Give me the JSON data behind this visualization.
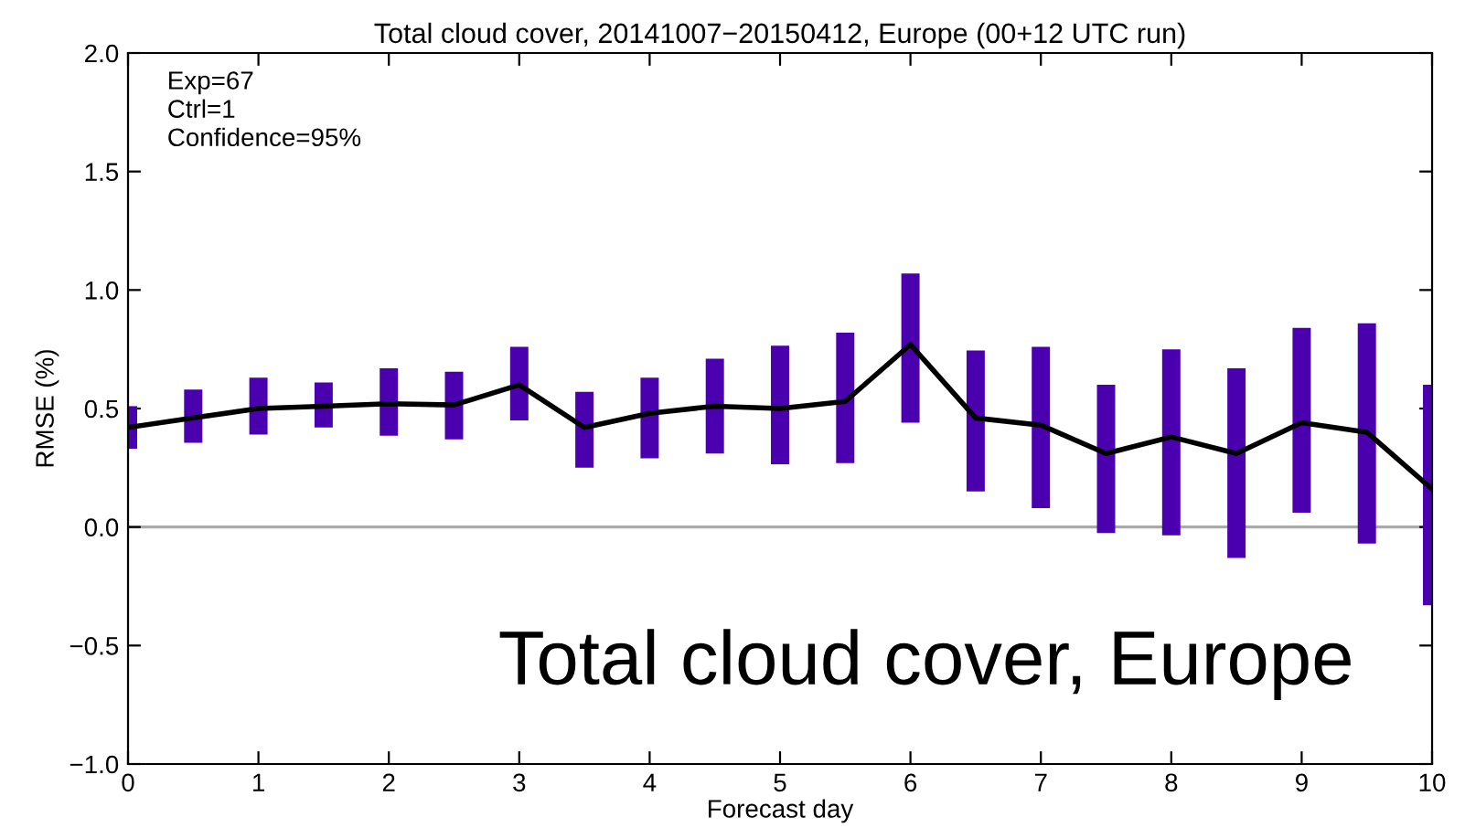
{
  "chart_data": {
    "type": "bar",
    "title": "Total cloud cover, 20141007−20150412, Europe (00+12 UTC run)",
    "xlabel": "Forecast day",
    "ylabel": "RMSE (%)",
    "x": [
      0,
      0.5,
      1,
      1.5,
      2,
      2.5,
      3,
      3.5,
      4,
      4.5,
      5,
      5.5,
      6,
      6.5,
      7,
      7.5,
      8,
      8.5,
      9,
      9.5,
      10
    ],
    "series": [
      {
        "color": "#4b00b0",
        "base": [
          0.33,
          0.355,
          0.39,
          0.42,
          0.385,
          0.37,
          0.45,
          0.25,
          0.29,
          0.31,
          0.265,
          0.27,
          0.44,
          0.15,
          0.08,
          -0.025,
          -0.035,
          -0.13,
          0.06,
          -0.07,
          -0.33
        ],
        "values": [
          0.18,
          0.225,
          0.24,
          0.19,
          0.285,
          0.285,
          0.31,
          0.32,
          0.34,
          0.4,
          0.5,
          0.55,
          0.63,
          0.595,
          0.68,
          0.625,
          0.785,
          0.8,
          0.78,
          0.93,
          0.93
        ]
      },
      {
        "type": "line",
        "color": "#000000",
        "values": [
          0.42,
          0.46,
          0.5,
          0.51,
          0.52,
          0.515,
          0.6,
          0.42,
          0.48,
          0.51,
          0.5,
          0.53,
          0.77,
          0.46,
          0.43,
          0.31,
          0.38,
          0.31,
          0.44,
          0.4,
          0.16
        ]
      }
    ],
    "xlim": [
      0,
      10
    ],
    "xticks": [
      0,
      1,
      2,
      3,
      4,
      5,
      6,
      7,
      8,
      9,
      10
    ],
    "ylim": [
      -1.0,
      2.0
    ],
    "yticks": [
      {
        "value": -1.0,
        "label": "−1.0"
      },
      {
        "value": -0.5,
        "label": "−0.5"
      },
      {
        "value": 0.0,
        "label": "0.0"
      },
      {
        "value": 0.5,
        "label": "0.5"
      },
      {
        "value": 1.0,
        "label": "1.0"
      },
      {
        "value": 1.5,
        "label": "1.5"
      },
      {
        "value": 2.0,
        "label": "2.0"
      }
    ],
    "ref_lines": [
      {
        "axis": "y",
        "value": 0,
        "color": "#aaaaaa"
      }
    ],
    "grid": false,
    "legend": false,
    "marker": "none",
    "line_style": "solid",
    "annotations": [
      "Exp=67",
      "Ctrl=1",
      "Confidence=95%",
      "Total cloud cover, Europe"
    ]
  }
}
